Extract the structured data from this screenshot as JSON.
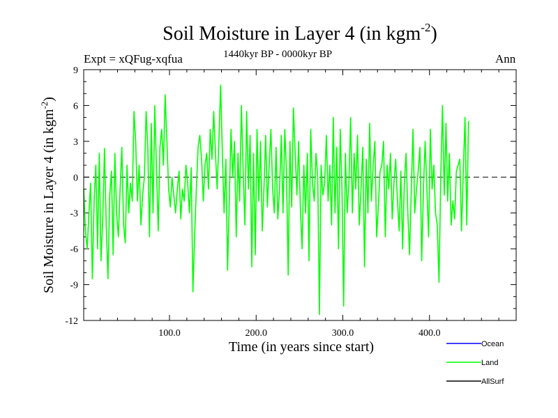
{
  "header": {
    "title": "Soil Moisture in Layer 4 (in kgm",
    "title_sup": "-2",
    "title_close": ")",
    "experiment": "Expt = xQFug-xqfua",
    "period": "1440kyr BP - 0000kyr BP",
    "season": "Ann"
  },
  "chart_data": {
    "type": "line",
    "title": "Soil Moisture in Layer 4 (in kgm-2)",
    "xlabel": "Time (in years since start)",
    "ylabel_main": "Soil Moisture in Layer 4 (in kgm",
    "ylabel_sup": "-2",
    "ylabel_close": ")",
    "xlim": [
      1,
      500
    ],
    "ylim": [
      -12,
      9
    ],
    "xticks": [
      100,
      200,
      300,
      400
    ],
    "xtick_labels": [
      "100.0",
      "200.0",
      "300.0",
      "400.0"
    ],
    "yticks": [
      -12,
      -9,
      -6,
      -3,
      0,
      3,
      6,
      9
    ],
    "ytick_labels": [
      "-12",
      "-9",
      "-6",
      "-3",
      "0",
      "3",
      "6",
      "9"
    ],
    "zero_line": "dashed",
    "legend": [
      {
        "name": "Ocean",
        "color": "#0000ff"
      },
      {
        "name": "Land",
        "color": "#00ff00"
      },
      {
        "name": "AllSurf",
        "color": "#000000"
      }
    ],
    "series": [
      {
        "name": "Land",
        "color": "#00ff00",
        "x_start": 1,
        "x_step": 2,
        "values": [
          -1.0,
          -4.5,
          -6.0,
          -3.0,
          -0.5,
          -8.5,
          -2.0,
          1.0,
          -6.0,
          2.0,
          -7.0,
          -3.5,
          2.4,
          -4.0,
          -8.5,
          -1.5,
          0.5,
          -6.5,
          2.0,
          -3.0,
          -5.0,
          -1.0,
          2.5,
          -4.0,
          -5.5,
          1.0,
          -3.0,
          -0.5,
          -2.0,
          5.5,
          3.0,
          -2.0,
          1.0,
          -4.0,
          -1.5,
          0.0,
          5.5,
          2.5,
          -5.0,
          4.5,
          -3.0,
          6.0,
          0.5,
          -4.5,
          2.5,
          4.0,
          1.0,
          6.9,
          3.0,
          -1.0,
          -2.5,
          0.0,
          -1.5,
          -3.0,
          -1.0,
          0.5,
          -3.5,
          -1.0,
          -2.0,
          1.0,
          -0.5,
          -3.0,
          0.8,
          -9.6,
          -5.0,
          -1.0,
          2.5,
          3.5,
          1.5,
          -2.0,
          1.0,
          2.0,
          -1.0,
          4.0,
          1.5,
          5.5,
          2.0,
          -1.0,
          3.0,
          7.7,
          2.0,
          -3.0,
          1.5,
          -7.8,
          -2.0,
          4.0,
          0.0,
          3.0,
          -5.0,
          2.0,
          -2.0,
          6.0,
          0.5,
          -4.0,
          5.5,
          -1.0,
          3.5,
          -7.5,
          2.0,
          -6.5,
          4.0,
          -2.0,
          3.0,
          -4.5,
          -1.0,
          3.5,
          -2.5,
          1.0,
          4.0,
          -1.0,
          -3.0,
          2.5,
          -3.5,
          -1.0,
          3.5,
          -3.0,
          4.0,
          0.5,
          -8.2,
          3.0,
          -2.5,
          5.8,
          2.0,
          -1.5,
          3.0,
          -2.5,
          -6.0,
          1.0,
          -3.0,
          2.0,
          -7.0,
          4.0,
          -0.5,
          -2.0,
          2.0,
          0.0,
          -11.5,
          1.0,
          -1.5,
          -0.5,
          3.5,
          -2.0,
          1.0,
          -4.0,
          5.0,
          -3.0,
          2.5,
          -6.0,
          4.0,
          -1.0,
          -10.8,
          2.0,
          -3.0,
          -0.5,
          5.0,
          -3.0,
          2.0,
          -1.0,
          3.5,
          -4.0,
          -1.0,
          2.5,
          -7.5,
          1.5,
          -3.0,
          4.5,
          -2.0,
          1.0,
          3.0,
          -5.0,
          -2.5,
          0.5,
          1.0,
          3.0,
          -5.0,
          1.0,
          -1.0,
          2.0,
          -3.5,
          -0.5,
          1.5,
          -2.0,
          -4.5,
          0.5,
          -6.0,
          -0.5,
          2.0,
          -3.0,
          -6.5,
          -1.0,
          4.0,
          -3.0,
          -1.0,
          0.5,
          2.5,
          -7.0,
          -1.0,
          3.0,
          -1.0,
          -5.0,
          4.0,
          -1.0,
          1.0,
          -3.0,
          -4.0,
          -8.8,
          0.0,
          6.0,
          -1.5,
          4.5,
          -2.0,
          2.0,
          -4.0,
          -2.0,
          -3.5,
          0.5,
          1.0,
          1.5,
          -4.5,
          0.5,
          5.0,
          -4.0,
          4.7
        ]
      }
    ]
  }
}
